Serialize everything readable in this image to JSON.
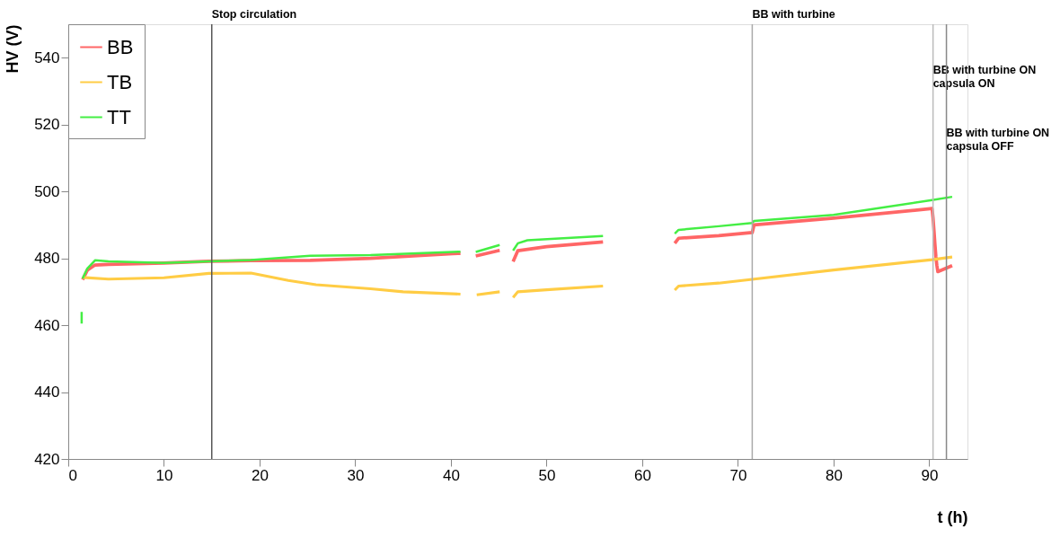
{
  "chart_data": {
    "type": "line",
    "xlabel": "t (h)",
    "ylabel": "HV (V)",
    "xlim": [
      0,
      94
    ],
    "ylim": [
      420,
      550
    ],
    "xticks": [
      0,
      10,
      20,
      30,
      40,
      50,
      60,
      70,
      80,
      90
    ],
    "yticks": [
      420,
      440,
      460,
      480,
      500,
      520,
      540
    ],
    "grid": false,
    "legend": "top left",
    "line_style": "solid",
    "marker": "none",
    "series": [
      {
        "name": "BB",
        "color": "#ff6666",
        "x": [
          1.5,
          2,
          2.8,
          4.2,
          10,
          14.7,
          19.1,
          25.3,
          31.6,
          40.2,
          41,
          41.8,
          42.6,
          45.1,
          45.8,
          46.5,
          47,
          50,
          55.9,
          60,
          63.4,
          63.8,
          68,
          71.5,
          71.7,
          80,
          90.3,
          90.4,
          90.5,
          90.6,
          90.7,
          90.8,
          90.9,
          92.4
        ],
        "values": [
          473.6,
          476.5,
          478,
          478.2,
          478.6,
          479.1,
          479.3,
          479.4,
          480,
          481.4,
          481.5,
          null,
          480.7,
          482.4,
          null,
          479,
          482.3,
          483.5,
          484.9,
          null,
          484.5,
          486,
          486.8,
          487.7,
          490,
          492,
          494.9,
          492.1,
          488.3,
          484.2,
          480.5,
          477.9,
          476,
          477.8
        ]
      },
      {
        "name": "TB",
        "color": "#ffcc44",
        "x": [
          1.5,
          4.2,
          10,
          14.7,
          19.1,
          23,
          25.9,
          31.6,
          35,
          40.2,
          41,
          41.8,
          42.7,
          45.1,
          45.8,
          46.5,
          47,
          50,
          55.9,
          60,
          63.4,
          63.8,
          68,
          71.5,
          80,
          90.3,
          92.4
        ],
        "values": [
          474.3,
          473.8,
          474.2,
          475.5,
          475.6,
          473.4,
          472.1,
          470.9,
          470,
          469.4,
          469.3,
          null,
          469.1,
          470,
          null,
          468.3,
          470,
          470.6,
          471.7,
          null,
          470.5,
          471.7,
          472.6,
          473.7,
          476.5,
          479.6,
          480.4
        ]
      },
      {
        "name": "TT",
        "color": "#44ee44",
        "x": [
          1.4,
          1.4,
          1.45,
          1.5,
          2,
          2.8,
          4.2,
          10,
          14.7,
          19.1,
          25.3,
          31.6,
          40.2,
          41,
          41.8,
          42.6,
          45.1,
          45.8,
          46.5,
          47,
          48,
          55.9,
          60,
          63.4,
          63.8,
          68,
          71.5,
          71.7,
          80,
          90.3,
          92.4
        ],
        "values": [
          460.5,
          464,
          null,
          474,
          477,
          479.4,
          479.1,
          478.6,
          479.1,
          479.5,
          480.8,
          481,
          481.9,
          482,
          null,
          481.9,
          484,
          null,
          482.3,
          484.5,
          485.4,
          486.7,
          null,
          487.4,
          488.5,
          489.6,
          490.6,
          491.2,
          493,
          497.4,
          498.4
        ]
      }
    ],
    "ref_lines": [
      {
        "axis": "x",
        "value": 15,
        "label": "Stop circulation",
        "color": "#555555"
      },
      {
        "axis": "x",
        "value": 71.5,
        "label": "BB with turbine",
        "color": "#aaaaaa"
      },
      {
        "axis": "x",
        "value": 90.4,
        "label": "BB with turbine ON\ncapsula ON",
        "color": "#bbbbbb"
      },
      {
        "axis": "x",
        "value": 91.8,
        "label": "BB with turbine ON\ncapsula OFF",
        "color": "#888888"
      }
    ]
  }
}
